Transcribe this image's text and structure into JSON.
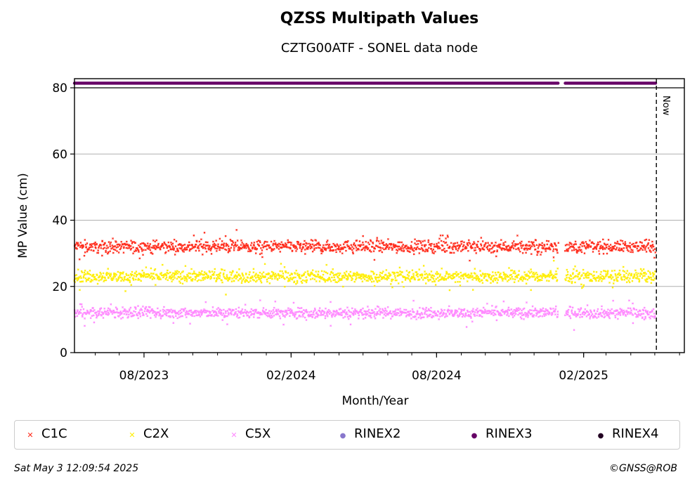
{
  "chart_data": {
    "type": "scatter",
    "title": "QZSS Multipath Values",
    "subtitle": "CZTG00ATF - SONEL data node",
    "xlabel": "Month/Year",
    "ylabel": "MP Value (cm)",
    "ylim": [
      0,
      82
    ],
    "xlim": [
      "2023-05-06",
      "2025-06-07"
    ],
    "x_ticks": [
      "08/2023",
      "02/2024",
      "08/2024",
      "02/2025"
    ],
    "y_ticks": [
      "0",
      "20",
      "40",
      "60",
      "80"
    ],
    "grid": "horizontal",
    "now_label": "Now",
    "now_date": "2025-05-03",
    "legend_placement": "bottom",
    "data_start": "2023-05-06",
    "data_end": "2025-05-02",
    "data_gap": [
      "2024-12-31",
      "2025-01-09"
    ],
    "series": [
      {
        "name": "C1C",
        "marker": "x",
        "color": "#ff2a1a",
        "mean": 32,
        "spread": 1.6
      },
      {
        "name": "C2X",
        "marker": "x",
        "color": "#ffee00",
        "mean": 23,
        "spread": 1.6
      },
      {
        "name": "C5X",
        "marker": "x",
        "color": "#ff88ff",
        "mean": 12,
        "spread": 1.4
      },
      {
        "name": "RINEX2",
        "marker": "o",
        "color": "#8877cc",
        "values": []
      },
      {
        "name": "RINEX3",
        "marker": "o",
        "color": "#660066",
        "value": 81.5
      },
      {
        "name": "RINEX4",
        "marker": "o",
        "color": "#220022",
        "values": []
      }
    ]
  },
  "footer": {
    "timestamp": "Sat May  3 12:09:54 2025",
    "credit": "©GNSS@ROB"
  }
}
